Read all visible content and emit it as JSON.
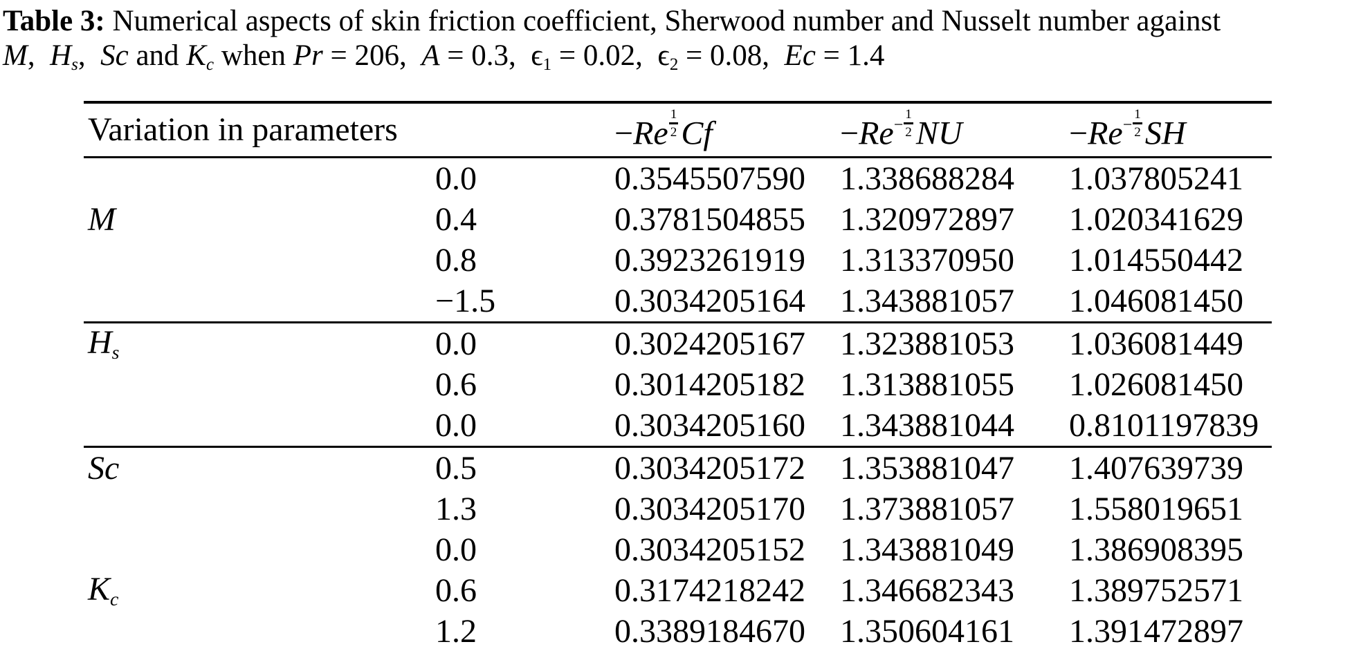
{
  "colors": {
    "text": "#000000",
    "background": "#ffffff",
    "rule": "#000000"
  },
  "caption": {
    "label": "Table 3:",
    "line1_rest": " Numerical aspects of skin friction coefficient, Sherwood number and Nusselt number against",
    "line2_segments": [
      {
        "t": "M",
        "s": "i"
      },
      {
        "t": ", ",
        "s": "r"
      },
      {
        "t": "H",
        "s": "i"
      },
      {
        "t": "s",
        "s": "subi"
      },
      {
        "t": ", ",
        "s": "r"
      },
      {
        "t": "Sc",
        "s": "i"
      },
      {
        "t": " and ",
        "s": "r"
      },
      {
        "t": "K",
        "s": "i"
      },
      {
        "t": "c",
        "s": "subi"
      },
      {
        "t": " when ",
        "s": "r"
      },
      {
        "t": "Pr",
        "s": "i"
      },
      {
        "t": " = 206, ",
        "s": "r"
      },
      {
        "t": "A",
        "s": "i"
      },
      {
        "t": " = 0.3, ",
        "s": "r"
      },
      {
        "t": "ϵ",
        "s": "r"
      },
      {
        "t": "1",
        "s": "sub"
      },
      {
        "t": " = 0.02, ",
        "s": "r"
      },
      {
        "t": "ϵ",
        "s": "r"
      },
      {
        "t": "2",
        "s": "sub"
      },
      {
        "t": " = 0.08, ",
        "s": "r"
      },
      {
        "t": "Ec",
        "s": "i"
      },
      {
        "t": " = 1.4",
        "s": "r"
      }
    ]
  },
  "table": {
    "header": {
      "col1": "Variation in parameters",
      "cf": [
        {
          "t": "−",
          "s": "r"
        },
        {
          "t": "Re",
          "s": "i"
        },
        {
          "s": "frac",
          "num": "1",
          "den": "2"
        },
        {
          "t": "Cf",
          "s": "i"
        }
      ],
      "nu": [
        {
          "t": "−",
          "s": "r"
        },
        {
          "t": "Re",
          "s": "i"
        },
        {
          "t": "−",
          "s": "supm"
        },
        {
          "s": "frac",
          "num": "1",
          "den": "2"
        },
        {
          "t": "NU",
          "s": "i"
        }
      ],
      "sh": [
        {
          "t": "−",
          "s": "r"
        },
        {
          "t": "Re",
          "s": "i"
        },
        {
          "t": "−",
          "s": "supm"
        },
        {
          "s": "frac",
          "num": "1",
          "den": "2"
        },
        {
          "t": "SH",
          "s": "i"
        }
      ]
    },
    "rows": [
      {
        "param": [],
        "value": "0.0",
        "cf": "0.3545507590",
        "nu": "1.338688284",
        "sh": "1.037805241"
      },
      {
        "param": [
          {
            "t": "M",
            "s": "i"
          }
        ],
        "value": "0.4",
        "cf": "0.3781504855",
        "nu": "1.320972897",
        "sh": "1.020341629"
      },
      {
        "param": [],
        "value": "0.8",
        "cf": "0.3923261919",
        "nu": "1.313370950",
        "sh": "1.014550442"
      },
      {
        "param": [],
        "value": "−1.5",
        "cf": "0.3034205164",
        "nu": "1.343881057",
        "sh": "1.046081450"
      },
      {
        "param": [
          {
            "t": "H",
            "s": "i"
          },
          {
            "t": "s",
            "s": "subi"
          }
        ],
        "value": "0.0",
        "cf": "0.3024205167",
        "nu": "1.323881053",
        "sh": "1.036081449"
      },
      {
        "param": [],
        "value": "0.6",
        "cf": "0.3014205182",
        "nu": "1.313881055",
        "sh": "1.026081450"
      },
      {
        "param": [],
        "value": "0.0",
        "cf": "0.3034205160",
        "nu": "1.343881044",
        "sh": "0.8101197839"
      },
      {
        "param": [
          {
            "t": "Sc",
            "s": "i"
          }
        ],
        "value": "0.5",
        "cf": "0.3034205172",
        "nu": "1.353881047",
        "sh": "1.407639739"
      },
      {
        "param": [],
        "value": "1.3",
        "cf": "0.3034205170",
        "nu": "1.373881057",
        "sh": "1.558019651"
      },
      {
        "param": [],
        "value": "0.0",
        "cf": "0.3034205152",
        "nu": "1.343881049",
        "sh": "1.386908395"
      },
      {
        "param": [
          {
            "t": "K",
            "s": "i"
          },
          {
            "t": "c",
            "s": "subi"
          }
        ],
        "value": "0.6",
        "cf": "0.3174218242",
        "nu": "1.346682343",
        "sh": "1.389752571"
      },
      {
        "param": [],
        "value": "1.2",
        "cf": "0.3389184670",
        "nu": "1.350604161",
        "sh": "1.391472897"
      }
    ]
  }
}
